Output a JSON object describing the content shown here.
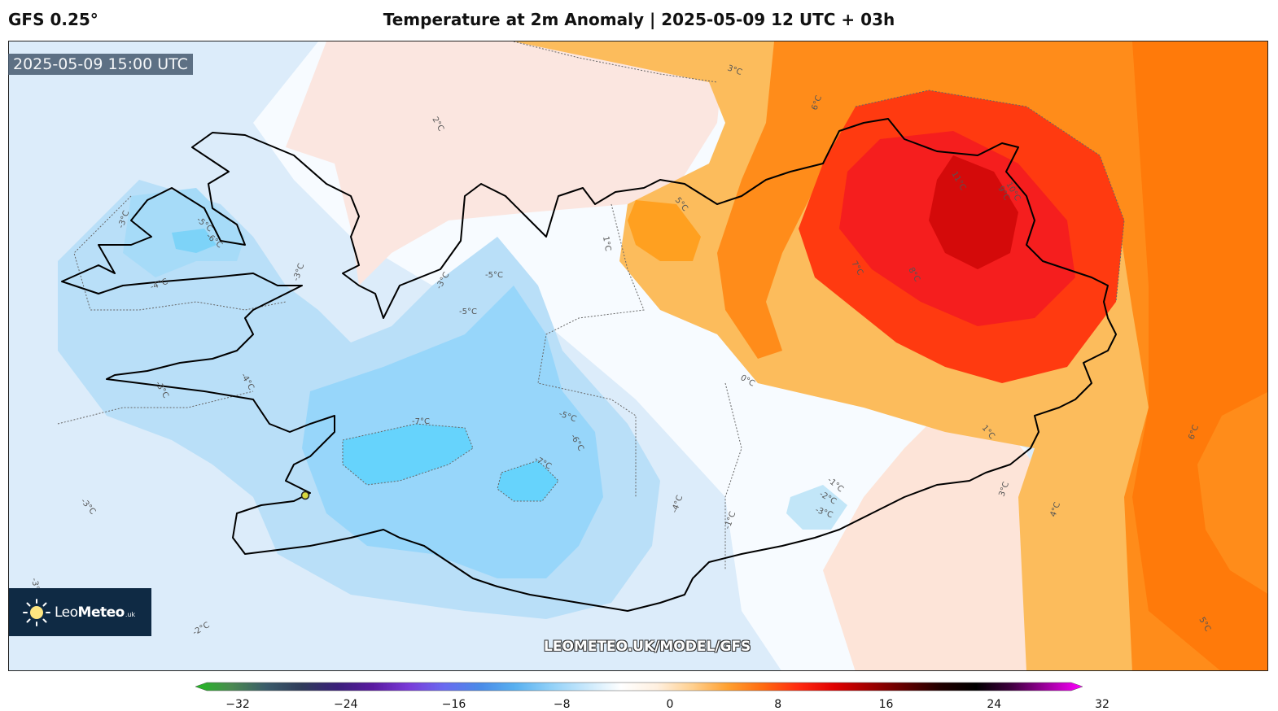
{
  "header": {
    "model": "GFS 0.25°",
    "title": "Temperature at 2m Anomaly | 2025-05-09 12 UTC + 03h"
  },
  "map": {
    "valid_time": "2025-05-09 15:00 UTC",
    "watermark": "LEOMETEO.UK/MODEL/GFS",
    "contour_labels": [
      "2°C",
      "-3°C",
      "-5°C",
      "-6°C",
      "-4°C",
      "-3°C",
      "-5°C",
      "-5°C",
      "-3°C",
      "-4°C",
      "-3°C",
      "-7°C",
      "-5°C",
      "-6°C",
      "-7°C",
      "-4°C",
      "-1°C",
      "1°C",
      "5°C",
      "6°C",
      "3°C",
      "0°C",
      "1°C",
      "-1°C",
      "-2°C",
      "-3°C",
      "7°C",
      "8°C",
      "9°C",
      "10°C",
      "11°C",
      "3°C",
      "4°C",
      "6°C",
      "5°C",
      "-3°C",
      "-3°C",
      "-2°C"
    ]
  },
  "logo": {
    "name_light": "Leo",
    "name_bold": "Meteo",
    "suffix": ".uk"
  },
  "colorbar": {
    "ticks": [
      "−32",
      "−24",
      "−16",
      "−8",
      "0",
      "8",
      "16",
      "24",
      "32"
    ],
    "min": -32,
    "max": 32,
    "colors": [
      "#22bb22",
      "#4a8a50",
      "#3b5b6a",
      "#2f3b5a",
      "#3a1f7a",
      "#5a1aa0",
      "#7a3ad8",
      "#6a6af0",
      "#4a8ae8",
      "#58b0f0",
      "#90d0f8",
      "#c8e8fc",
      "#ffffff",
      "#fff0e0",
      "#ffd090",
      "#ffa030",
      "#ff6a10",
      "#ff2a10",
      "#e00000",
      "#a00000",
      "#600000",
      "#200000",
      "#000000",
      "#400040",
      "#a000a0",
      "#ff00ff"
    ]
  },
  "accent_colors": {
    "cold": "#66d6fb",
    "warm": "#ff1f1f",
    "coast": "#000000"
  }
}
